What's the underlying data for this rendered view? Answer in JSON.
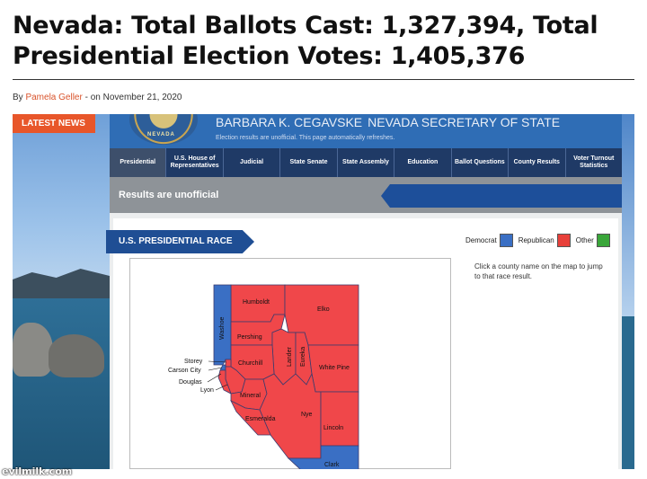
{
  "article": {
    "headline": "Nevada: Total Ballots Cast: 1,327,394, Total Presidential Election Votes: 1,405,376",
    "byline_prefix": "By ",
    "author": "Pamela Geller",
    "byline_sep": " - on ",
    "date": "November 21, 2020"
  },
  "sidebar": {
    "latest_news": "LATEST NEWS"
  },
  "site": {
    "seal_text": "NEVADA",
    "secretary_name": "BARBARA K. CEGAVSKE",
    "secretary_role": "NEVADA SECRETARY OF STATE",
    "refresh_note": "Election results are unofficial. This page automatically refreshes.",
    "nav": [
      "Presidential",
      "U.S. House of Representatives",
      "Judicial",
      "State Senate",
      "State Assembly",
      "Education",
      "Ballot Questions",
      "County Results",
      "Voter Turnout Statistics"
    ],
    "results_unofficial": "Results are unofficial",
    "race_title": "U.S. PRESIDENTIAL RACE",
    "legend": [
      {
        "label": "Democrat",
        "color": "#3a6fc4"
      },
      {
        "label": "Republican",
        "color": "#e8403a"
      },
      {
        "label": "Other",
        "color": "#3aa63a"
      }
    ],
    "map_note": "Click a county name on the map to jump to that race result.",
    "counties": {
      "humboldt": "Humboldt",
      "elko": "Elko",
      "washoe": "Washoe",
      "pershing": "Pershing",
      "lander": "Lander",
      "eureka": "Eureka",
      "churchill": "Churchill",
      "white_pine": "White Pine",
      "storey": "Storey",
      "carson_city": "Carson City",
      "douglas": "Douglas",
      "lyon": "Lyon",
      "mineral": "Mineral",
      "nye": "Nye",
      "esmeralda": "Esmeralda",
      "lincoln": "Lincoln",
      "clark": "Clark"
    },
    "colors": {
      "democrat": "#3a6fc4",
      "republican": "#f0474a",
      "border": "#3b3b6e"
    }
  },
  "watermark": "evilmilk.com"
}
